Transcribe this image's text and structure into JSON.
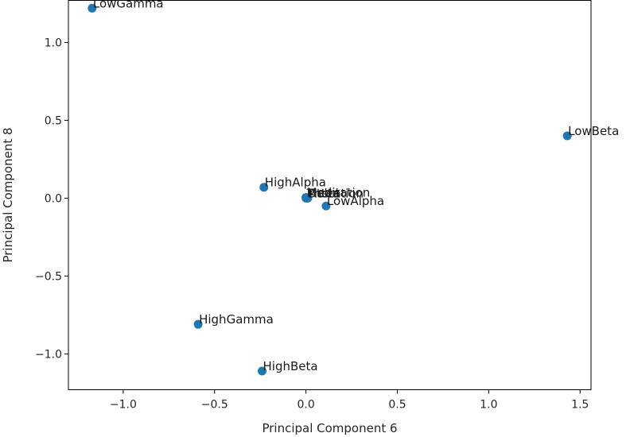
{
  "chart_data": {
    "type": "scatter",
    "xlabel": "Principal Component 6",
    "ylabel": "Principal Component 8",
    "xlim": [
      -1.3,
      1.56
    ],
    "ylim": [
      -1.23,
      1.27
    ],
    "xticks": [
      -1.0,
      -0.5,
      0.0,
      0.5,
      1.0,
      1.5
    ],
    "xtick_labels": [
      "−1.0",
      "−0.5",
      "0.0",
      "0.5",
      "1.0",
      "1.5"
    ],
    "yticks": [
      -1.0,
      -0.5,
      0.0,
      0.5,
      1.0
    ],
    "ytick_labels": [
      "−1.0",
      "−0.5",
      "0.0",
      "0.5",
      "1.0"
    ],
    "grid": false,
    "point_color": "#1f77b4",
    "points": [
      {
        "label": "LowGamma",
        "x": -1.17,
        "y": 1.22
      },
      {
        "label": "LowBeta",
        "x": 1.43,
        "y": 0.4
      },
      {
        "label": "HighAlpha",
        "x": -0.23,
        "y": 0.07
      },
      {
        "label": "Theta",
        "x": 0.0,
        "y": 0.0
      },
      {
        "label": "Delta",
        "x": 0.005,
        "y": 0.0
      },
      {
        "label": "Attention",
        "x": 0.01,
        "y": 0.0
      },
      {
        "label": "Meditation",
        "x": 0.0,
        "y": 0.005
      },
      {
        "label": "LowAlpha",
        "x": 0.11,
        "y": -0.05
      },
      {
        "label": "HighGamma",
        "x": -0.59,
        "y": -0.81
      },
      {
        "label": "HighBeta",
        "x": -0.24,
        "y": -1.11
      }
    ]
  }
}
